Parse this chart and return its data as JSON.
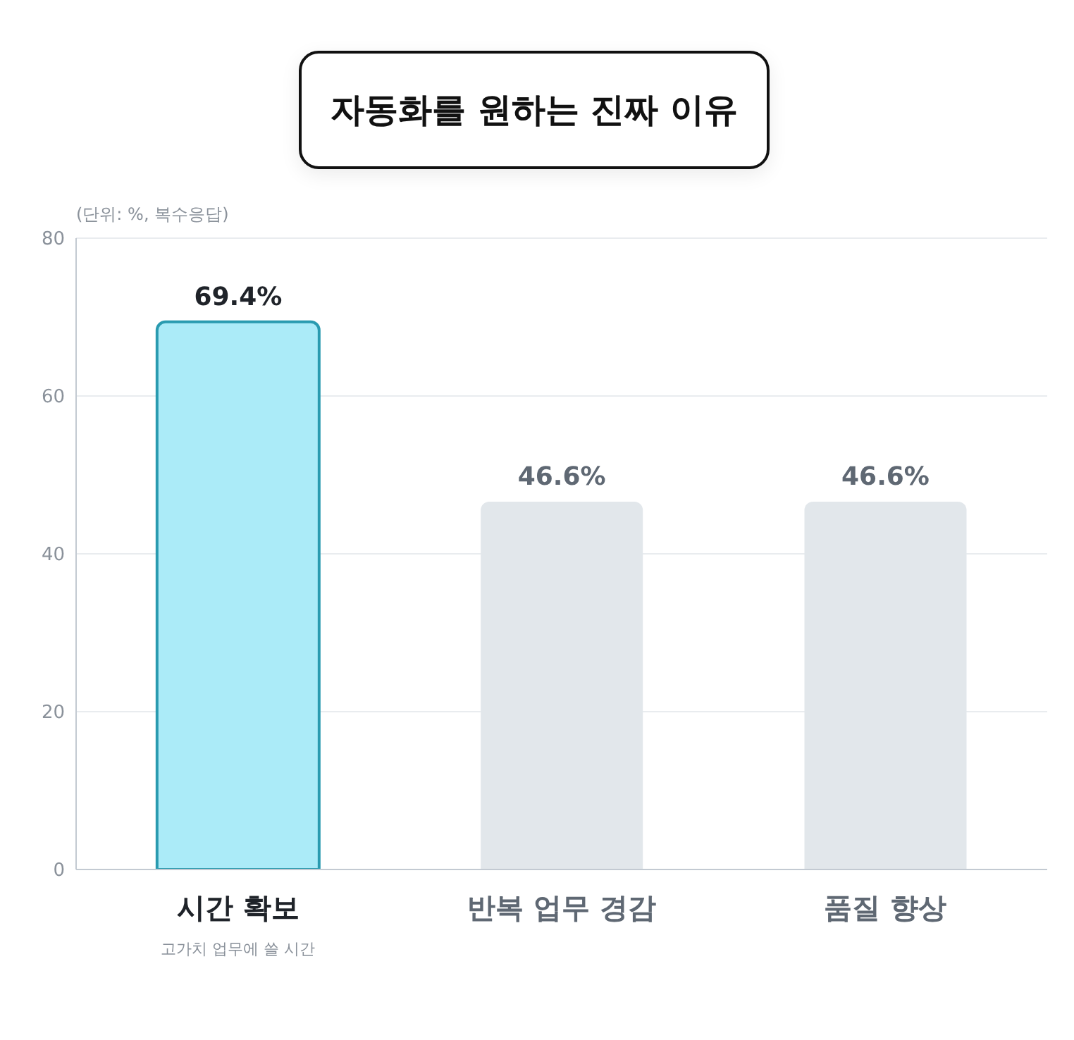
{
  "chart_data": {
    "type": "bar",
    "title": "자동화를 원하는 진짜 이유",
    "ylabel": "(단위: %, 복수응답)",
    "categories": [
      "시간 확보",
      "반복 업무 경감",
      "품질 향상"
    ],
    "values": [
      69.4,
      46.6,
      46.6
    ],
    "colors": [
      "#abebf8",
      "#e2e7eb",
      "#e2e7eb"
    ],
    "value_labels": [
      "69.4%",
      "46.6%",
      "46.6%"
    ],
    "annotations": [
      "고가치 업무에 쓸 시간"
    ],
    "ylim": [
      0,
      80
    ],
    "yticks": [
      0,
      20,
      40,
      60,
      80
    ],
    "grid": "y"
  }
}
